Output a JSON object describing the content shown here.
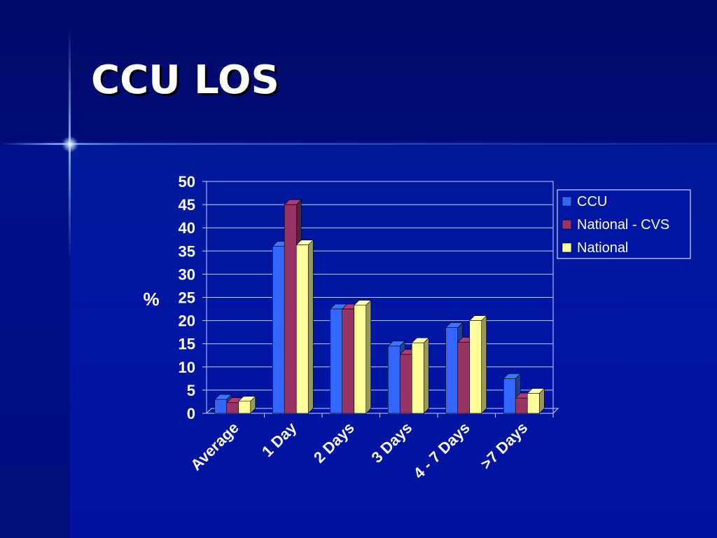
{
  "slide": {
    "title": "CCU LOS"
  },
  "colors": {
    "CCU": "#3366ff",
    "National - CVS": "#993366",
    "National": "#ffff99"
  },
  "chart_data": {
    "type": "bar",
    "title": "",
    "xlabel": "",
    "ylabel": "%",
    "ylim": [
      0,
      50
    ],
    "yticks": [
      0,
      5,
      10,
      15,
      20,
      25,
      30,
      35,
      40,
      45,
      50
    ],
    "categories": [
      "Average",
      "1 Day",
      "2 Days",
      "3 Days",
      "4 - 7 Days",
      ">7 Days"
    ],
    "series": [
      {
        "name": "CCU",
        "values": [
          3,
          36,
          22.5,
          14.5,
          18.5,
          7.5
        ]
      },
      {
        "name": "National - CVS",
        "values": [
          2.3,
          45,
          22.5,
          12.7,
          15.3,
          3.3
        ]
      },
      {
        "name": "National",
        "values": [
          2.6,
          36.3,
          23.3,
          15.2,
          20,
          4.3
        ]
      }
    ],
    "grid": true,
    "legend": "right"
  }
}
